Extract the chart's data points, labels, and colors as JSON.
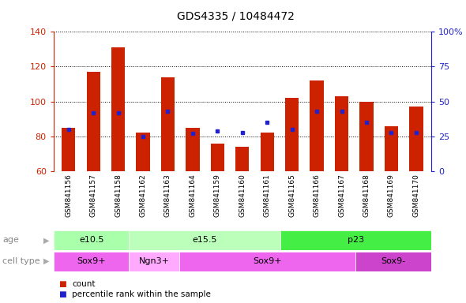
{
  "title": "GDS4335 / 10484472",
  "samples": [
    "GSM841156",
    "GSM841157",
    "GSM841158",
    "GSM841162",
    "GSM841163",
    "GSM841164",
    "GSM841159",
    "GSM841160",
    "GSM841161",
    "GSM841165",
    "GSM841166",
    "GSM841167",
    "GSM841168",
    "GSM841169",
    "GSM841170"
  ],
  "counts": [
    85,
    117,
    131,
    82,
    114,
    85,
    76,
    74,
    82,
    102,
    112,
    103,
    100,
    86,
    97
  ],
  "percentile": [
    30,
    42,
    42,
    25,
    43,
    27,
    29,
    28,
    35,
    30,
    43,
    43,
    35,
    28,
    28
  ],
  "ylim_left": [
    60,
    140
  ],
  "ylim_right": [
    0,
    100
  ],
  "yticks_left": [
    60,
    80,
    100,
    120,
    140
  ],
  "yticks_right": [
    0,
    25,
    50,
    75,
    100
  ],
  "bar_color": "#CC2200",
  "dot_color": "#2222CC",
  "title_fontsize": 10,
  "age_groups": [
    {
      "label": "e10.5",
      "start": 0,
      "end": 3,
      "color": "#AAFFAA"
    },
    {
      "label": "e15.5",
      "start": 3,
      "end": 9,
      "color": "#BBFFBB"
    },
    {
      "label": "p23",
      "start": 9,
      "end": 15,
      "color": "#44EE44"
    }
  ],
  "cell_groups": [
    {
      "label": "Sox9+",
      "start": 0,
      "end": 3,
      "color": "#EE66EE"
    },
    {
      "label": "Ngn3+",
      "start": 3,
      "end": 5,
      "color": "#FFAAFF"
    },
    {
      "label": "Sox9+",
      "start": 5,
      "end": 12,
      "color": "#EE66EE"
    },
    {
      "label": "Sox9-",
      "start": 12,
      "end": 15,
      "color": "#CC44CC"
    }
  ],
  "row_label_age": "age",
  "row_label_cell": "cell type",
  "legend_count": "count",
  "legend_percentile": "percentile rank within the sample",
  "axis_color_left": "#CC2200",
  "axis_color_right": "#2222CC",
  "xtick_bg": "#DDDDDD",
  "plot_bg": "#FFFFFF"
}
